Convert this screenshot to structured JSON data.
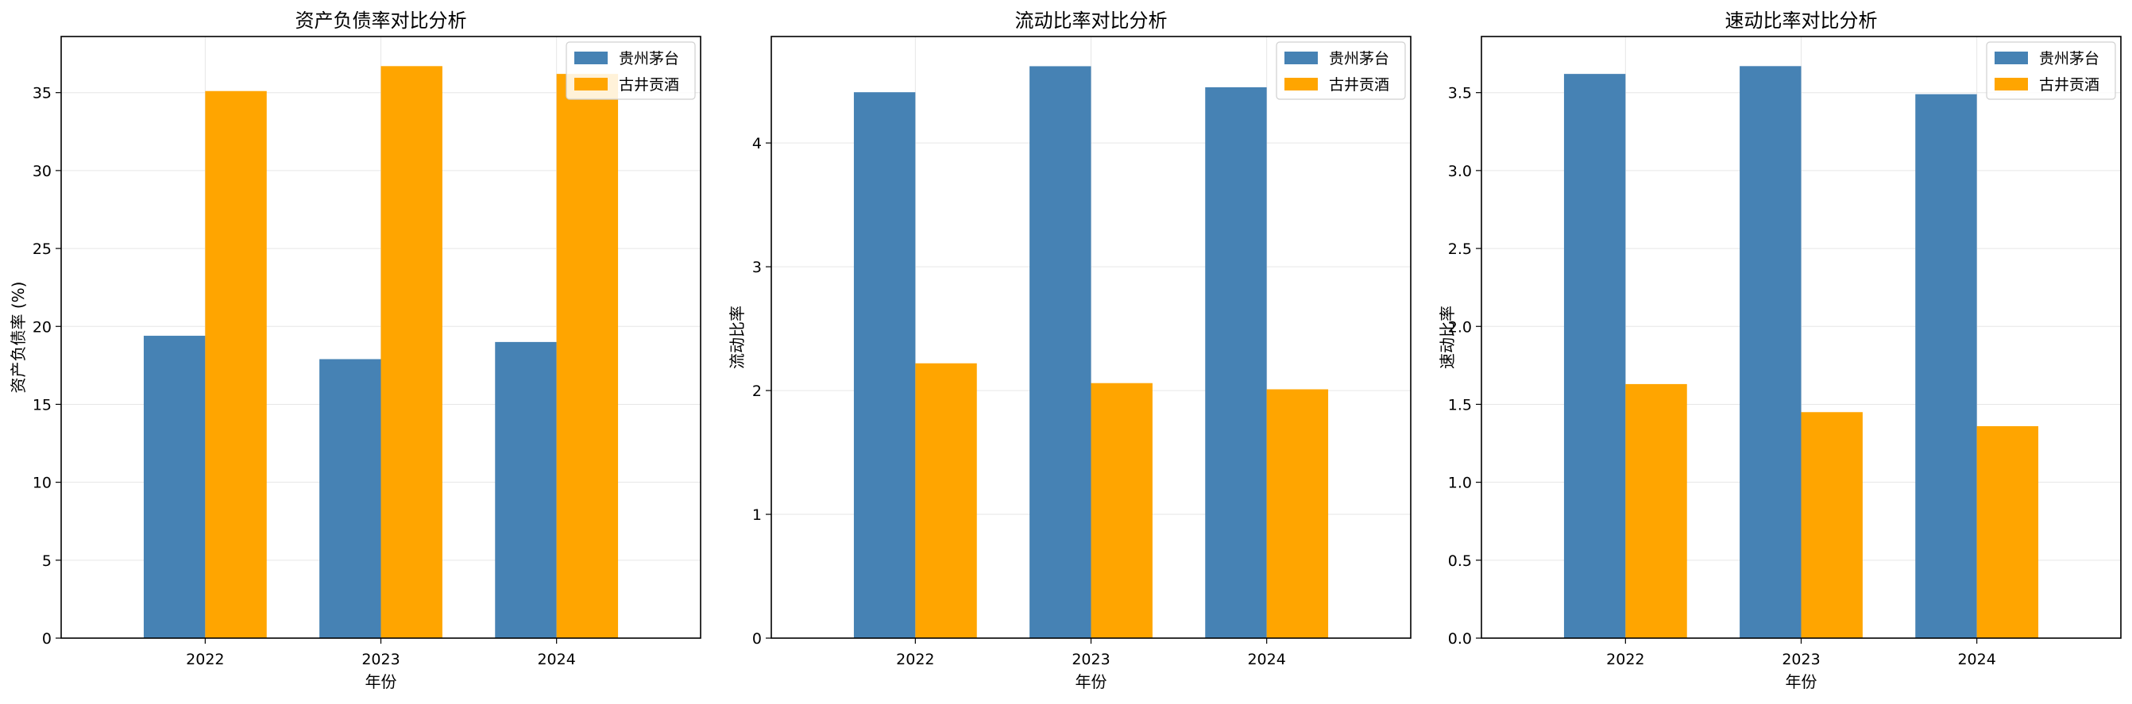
{
  "chart_data": [
    {
      "type": "bar",
      "title": "资产负债率对比分析",
      "xlabel": "年份",
      "ylabel": "资产负债率 (%)",
      "categories": [
        "2022",
        "2023",
        "2024"
      ],
      "series": [
        {
          "name": "贵州茅台",
          "color": "#4682b4",
          "values": [
            19.4,
            17.9,
            19.0
          ]
        },
        {
          "name": "古井贡酒",
          "color": "#ffa500",
          "values": [
            35.1,
            36.7,
            36.2
          ]
        }
      ],
      "ylim": [
        0,
        38.6
      ],
      "yticks": [
        0,
        5,
        10,
        15,
        20,
        25,
        30,
        35
      ],
      "ytick_labels": [
        "0",
        "5",
        "10",
        "15",
        "20",
        "25",
        "30",
        "35"
      ],
      "grid": true,
      "legend": "upper right"
    },
    {
      "type": "bar",
      "title": "流动比率对比分析",
      "xlabel": "年份",
      "ylabel": "流动比率",
      "categories": [
        "2022",
        "2023",
        "2024"
      ],
      "series": [
        {
          "name": "贵州茅台",
          "color": "#4682b4",
          "values": [
            4.41,
            4.62,
            4.45
          ]
        },
        {
          "name": "古井贡酒",
          "color": "#ffa500",
          "values": [
            2.22,
            2.06,
            2.01
          ]
        }
      ],
      "ylim": [
        0,
        4.86
      ],
      "yticks": [
        0,
        1,
        2,
        3,
        4
      ],
      "ytick_labels": [
        "0",
        "1",
        "2",
        "3",
        "4"
      ],
      "grid": true,
      "legend": "upper right"
    },
    {
      "type": "bar",
      "title": "速动比率对比分析",
      "xlabel": "年份",
      "ylabel": "速动比率",
      "categories": [
        "2022",
        "2023",
        "2024"
      ],
      "series": [
        {
          "name": "贵州茅台",
          "color": "#4682b4",
          "values": [
            3.62,
            3.67,
            3.49
          ]
        },
        {
          "name": "古井贡酒",
          "color": "#ffa500",
          "values": [
            1.63,
            1.45,
            1.36
          ]
        }
      ],
      "ylim": [
        0,
        3.86
      ],
      "yticks": [
        0,
        0.5,
        1.0,
        1.5,
        2.0,
        2.5,
        3.0,
        3.5
      ],
      "ytick_labels": [
        "0.0",
        "0.5",
        "1.0",
        "1.5",
        "2.0",
        "2.5",
        "3.0",
        "3.5"
      ],
      "grid": true,
      "legend": "upper right"
    }
  ]
}
